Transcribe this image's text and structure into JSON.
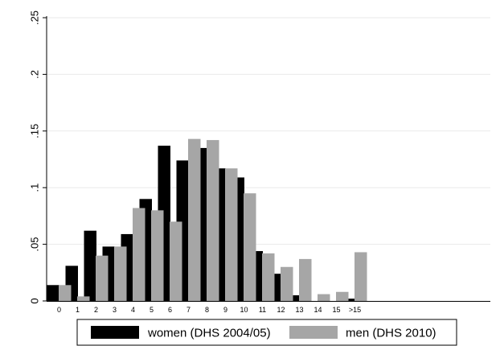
{
  "chart_data": {
    "type": "bar",
    "categories": [
      "0",
      "1",
      "2",
      "3",
      "4",
      "5",
      "6",
      "7",
      "8",
      "9",
      "10",
      "11",
      "12",
      "13",
      "14",
      "15",
      ">15"
    ],
    "series": [
      {
        "name": "women (DHS 2004/05)",
        "color": "#000000",
        "values": [
          0.014,
          0.031,
          0.062,
          0.048,
          0.059,
          0.09,
          0.137,
          0.124,
          0.135,
          0.117,
          0.109,
          0.044,
          0.024,
          0.005,
          0.0,
          0.0,
          0.002
        ]
      },
      {
        "name": "men (DHS 2010)",
        "color": "#a6a6a6",
        "values": [
          0.014,
          0.004,
          0.04,
          0.048,
          0.082,
          0.08,
          0.07,
          0.143,
          0.142,
          0.117,
          0.095,
          0.042,
          0.03,
          0.037,
          0.006,
          0.008,
          0.043
        ]
      }
    ],
    "yticks": [
      {
        "value": 0,
        "label": "0"
      },
      {
        "value": 0.05,
        "label": ".05"
      },
      {
        "value": 0.1,
        "label": ".1"
      },
      {
        "value": 0.15,
        "label": ".15"
      },
      {
        "value": 0.2,
        "label": ".2"
      },
      {
        "value": 0.25,
        "label": ".25"
      }
    ],
    "ylim": [
      0,
      0.25
    ],
    "title": "",
    "xlabel": "",
    "ylabel": "",
    "grid": true,
    "legend_position": "bottom"
  }
}
